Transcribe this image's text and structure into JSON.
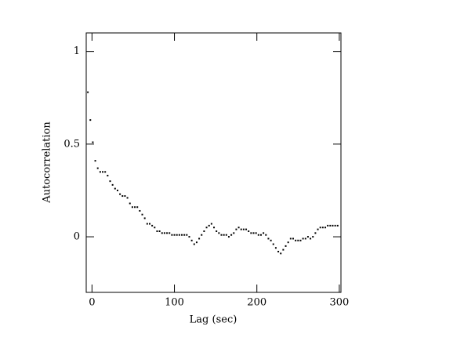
{
  "chart_data": {
    "type": "scatter",
    "x_label": "Lag (sec)",
    "y_label": "Autocorrelation",
    "color": "#000000",
    "x": [
      -5,
      -2,
      1,
      4,
      7,
      10,
      13,
      16,
      19,
      22,
      25,
      28,
      31,
      34,
      37,
      40,
      43,
      46,
      49,
      52,
      55,
      58,
      61,
      64,
      67,
      70,
      73,
      76,
      79,
      82,
      85,
      88,
      91,
      94,
      97,
      100,
      103,
      106,
      109,
      112,
      115,
      118,
      121,
      124,
      127,
      130,
      133,
      136,
      139,
      142,
      145,
      148,
      151,
      154,
      157,
      160,
      163,
      166,
      169,
      172,
      175,
      178,
      181,
      184,
      187,
      190,
      193,
      196,
      199,
      202,
      205,
      208,
      211,
      214,
      217,
      220,
      223,
      226,
      229,
      232,
      235,
      238,
      241,
      244,
      247,
      250,
      253,
      256,
      259,
      262,
      265,
      268,
      271,
      274,
      277,
      280,
      283,
      286,
      289,
      292,
      295,
      298
    ],
    "values": [
      0.78,
      0.63,
      0.51,
      0.41,
      0.37,
      0.35,
      0.35,
      0.35,
      0.33,
      0.3,
      0.28,
      0.26,
      0.25,
      0.23,
      0.22,
      0.22,
      0.21,
      0.18,
      0.16,
      0.16,
      0.16,
      0.14,
      0.12,
      0.1,
      0.07,
      0.07,
      0.06,
      0.05,
      0.03,
      0.03,
      0.02,
      0.02,
      0.02,
      0.02,
      0.01,
      0.01,
      0.01,
      0.01,
      0.01,
      0.01,
      0.01,
      0.0,
      -0.02,
      -0.04,
      -0.03,
      -0.01,
      0.01,
      0.03,
      0.05,
      0.06,
      0.07,
      0.05,
      0.03,
      0.02,
      0.01,
      0.01,
      0.01,
      0.0,
      0.01,
      0.02,
      0.04,
      0.05,
      0.04,
      0.04,
      0.04,
      0.03,
      0.02,
      0.02,
      0.02,
      0.01,
      0.01,
      0.02,
      0.01,
      -0.01,
      -0.02,
      -0.04,
      -0.06,
      -0.08,
      -0.09,
      -0.07,
      -0.05,
      -0.03,
      -0.01,
      -0.01,
      -0.02,
      -0.02,
      -0.02,
      -0.01,
      -0.01,
      0.0,
      -0.01,
      0.0,
      0.02,
      0.04,
      0.05,
      0.05,
      0.05,
      0.06,
      0.06,
      0.06,
      0.06,
      0.06
    ],
    "xlim": [
      -7,
      302
    ],
    "ylim": [
      -0.3,
      1.1
    ],
    "xticks": [
      0,
      100,
      200,
      300
    ],
    "yticks": [
      0,
      0.5,
      1
    ]
  }
}
